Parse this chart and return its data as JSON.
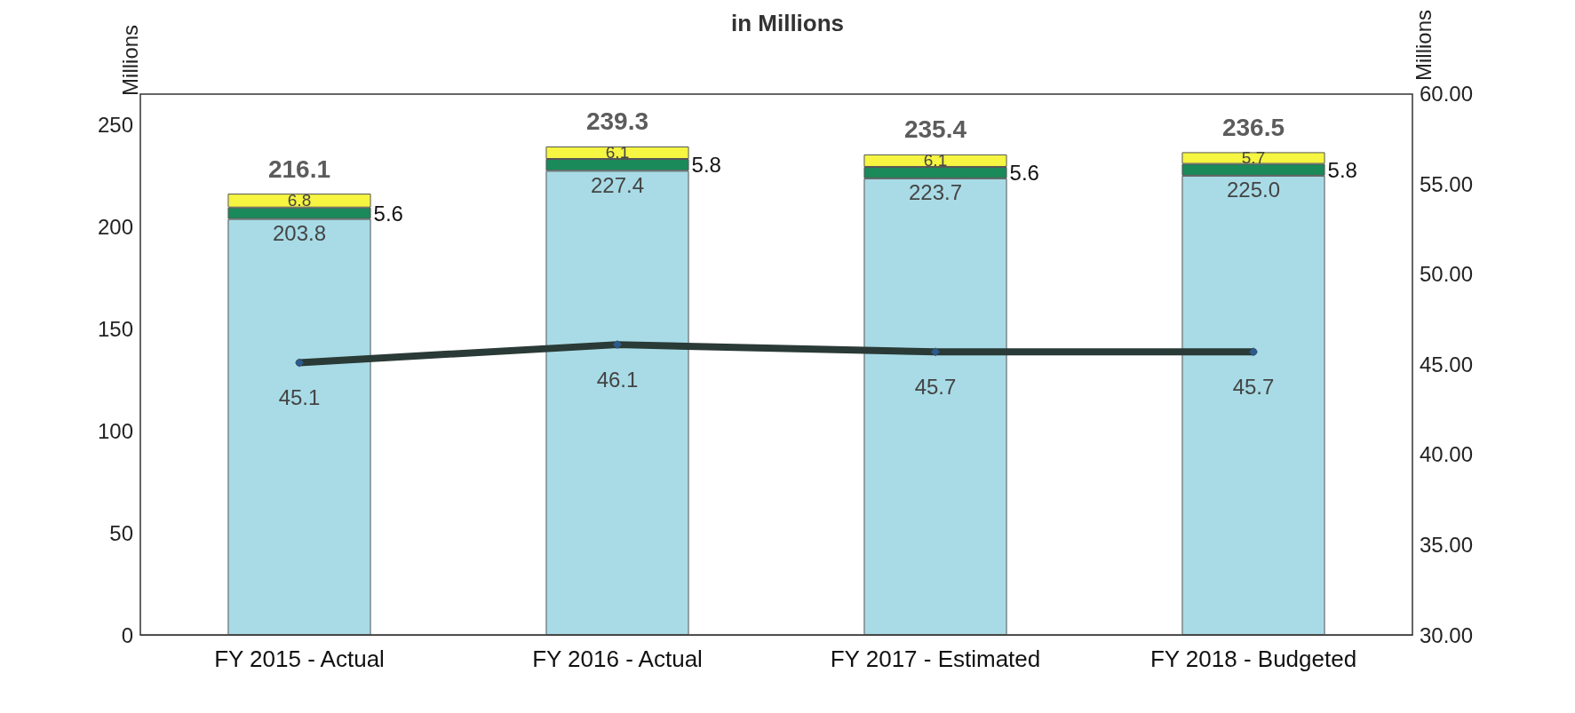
{
  "chart_data": {
    "type": "bar",
    "title": "in Millions",
    "ylabel": "Millions",
    "y2label": "Millions",
    "categories": [
      "FY 2015 - Actual",
      "FY 2016 - Actual",
      "FY 2017 - Estimated",
      "FY 2018 - Budgeted"
    ],
    "stacked": true,
    "series": [
      {
        "color": "#a8dbe6",
        "values": [
          203.8,
          227.4,
          223.7,
          225.0
        ],
        "value_labels": [
          "203.8",
          "227.4",
          "223.7",
          "225.0"
        ]
      },
      {
        "color": "#1a8a5a",
        "values": [
          5.6,
          5.8,
          5.6,
          5.8
        ]
      },
      {
        "color": "#f5f542",
        "values": [
          6.8,
          6.1,
          6.1,
          5.7
        ]
      },
      {
        "type": "line",
        "axis": "y2",
        "color": "#2a3a36",
        "values": [
          45.1,
          46.1,
          45.7,
          45.7
        ]
      }
    ],
    "totals": [
      "216.1",
      "239.3",
      "235.4",
      "236.5"
    ],
    "data_labels": true,
    "ylim": [
      0,
      265
    ],
    "yticks": [
      0,
      50,
      100,
      150,
      200,
      250
    ],
    "y2lim": [
      30,
      60
    ],
    "y2ticks": [
      {
        "value": 30,
        "label": "30.00"
      },
      {
        "value": 35,
        "label": "35.00"
      },
      {
        "value": 40,
        "label": "40.00"
      },
      {
        "value": 45,
        "label": "45.00"
      },
      {
        "value": 50,
        "label": "50.00"
      },
      {
        "value": 55,
        "label": "55.00"
      },
      {
        "value": 60,
        "label": "60.00"
      }
    ],
    "grid": false,
    "marker": "diamond",
    "line_style": "solid"
  }
}
